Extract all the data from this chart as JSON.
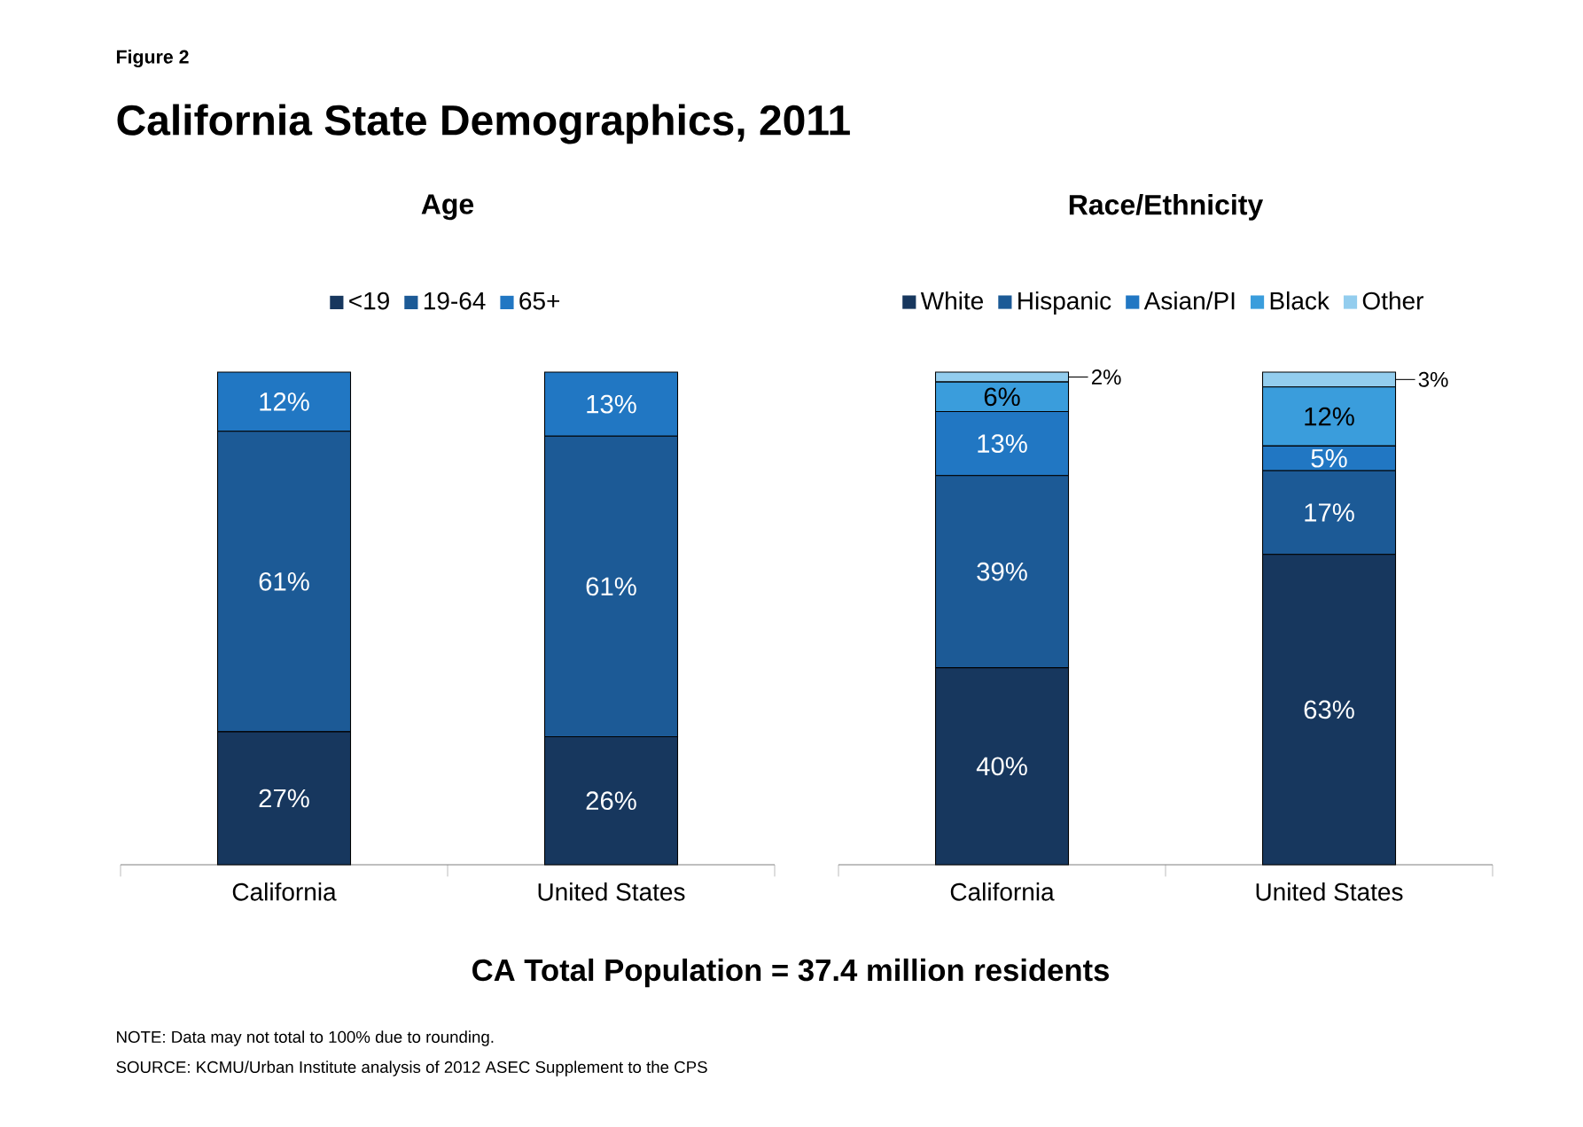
{
  "chart_data": [
    {
      "type": "bar",
      "stacked": true,
      "title": "Age",
      "legend": "top",
      "categories": [
        "California",
        "United States"
      ],
      "series": [
        {
          "name": "<19",
          "color": "#17375e",
          "values": [
            27,
            26
          ],
          "value_labels": [
            "27%",
            "26%"
          ]
        },
        {
          "name": "19-64",
          "color": "#1c5a96",
          "values": [
            61,
            61
          ],
          "value_labels": [
            "61%",
            "61%"
          ]
        },
        {
          "name": "65+",
          "color": "#2177c3",
          "values": [
            12,
            13
          ],
          "value_labels": [
            "12%",
            "13%"
          ]
        }
      ],
      "annotations": [
        "Figure 2",
        "California State Demographics, 2011",
        "CA Total Population = 37.4 million residents",
        "NOTE: Data may not total to 100% due to rounding.",
        "SOURCE: KCMU/Urban Institute analysis of 2012 ASEC Supplement to the CPS"
      ]
    },
    {
      "type": "bar",
      "stacked": true,
      "title": "Race/Ethnicity",
      "legend": "top",
      "categories": [
        "California",
        "United States"
      ],
      "series": [
        {
          "name": "White",
          "color": "#17375e",
          "values": [
            40,
            63
          ],
          "value_labels": [
            "40%",
            "63%"
          ]
        },
        {
          "name": "Hispanic",
          "color": "#1c5a96",
          "values": [
            39,
            17
          ],
          "value_labels": [
            "39%",
            "17%"
          ]
        },
        {
          "name": "Asian/PI",
          "color": "#2177c3",
          "values": [
            13,
            5
          ],
          "value_labels": [
            "13%",
            "5%"
          ]
        },
        {
          "name": "Black",
          "color": "#3a9ddc",
          "values": [
            6,
            12
          ],
          "value_labels": [
            "6%",
            "12%"
          ]
        },
        {
          "name": "Other",
          "color": "#93cdee",
          "values": [
            2,
            3
          ],
          "value_labels": [
            "2%",
            "3%"
          ]
        }
      ]
    }
  ]
}
